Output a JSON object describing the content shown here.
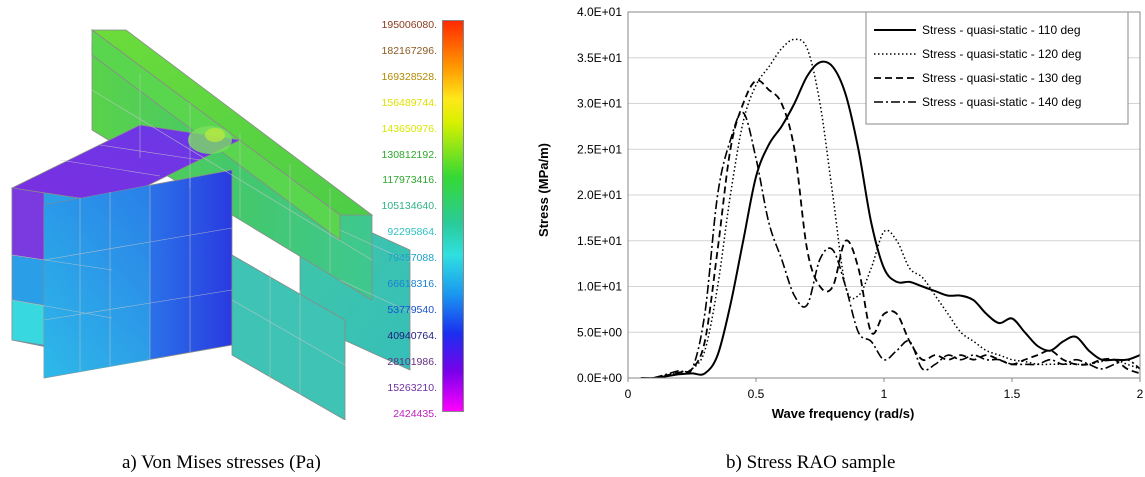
{
  "captions": {
    "a": "a) Von Mises stresses (Pa)",
    "b": "b) Stress RAO sample"
  },
  "colorbar": {
    "labels": [
      "195006080.",
      "182167296.",
      "169328528.",
      "156489744.",
      "143650976.",
      "130812192.",
      "117973416.",
      "105134640.",
      "92295864.",
      "79457088.",
      "66618316.",
      "53779540.",
      "40940764.",
      "28101986.",
      "15263210.",
      "2424435."
    ],
    "label_colors": [
      "#8a3a20",
      "#8a5a20",
      "#b08a00",
      "#e0e000",
      "#d8e800",
      "#2ca82c",
      "#2ca82c",
      "#33b088",
      "#30c0c0",
      "#1aa0c8",
      "#1a80d0",
      "#1a50d0",
      "#202080",
      "#603080",
      "#7030a0",
      "#c020c0"
    ]
  },
  "chart_data": {
    "type": "line",
    "xlabel": "Wave frequency (rad/s)",
    "ylabel": "Stress (MPa/m)",
    "xlim": [
      0,
      2
    ],
    "ylim": [
      0,
      40
    ],
    "x_ticks": [
      0,
      0.5,
      1,
      1.5,
      2
    ],
    "x_tick_labels": [
      "0",
      "0.5",
      "1",
      "1.5",
      "2"
    ],
    "y_ticks": [
      0,
      5,
      10,
      15,
      20,
      25,
      30,
      35,
      40
    ],
    "y_tick_labels": [
      "0.0E+00",
      "5.0E+00",
      "1.0E+01",
      "1.5E+01",
      "2.0E+01",
      "2.5E+01",
      "3.0E+01",
      "3.5E+01",
      "4.0E+01"
    ],
    "grid": "horizontal",
    "legend_position": "top-right",
    "series": [
      {
        "name": "Stress - quasi-static - 110 deg",
        "dash": "solid",
        "x": [
          0.05,
          0.1,
          0.15,
          0.2,
          0.25,
          0.3,
          0.35,
          0.4,
          0.45,
          0.5,
          0.55,
          0.6,
          0.65,
          0.7,
          0.75,
          0.8,
          0.85,
          0.9,
          0.95,
          1.0,
          1.05,
          1.1,
          1.15,
          1.2,
          1.25,
          1.3,
          1.35,
          1.4,
          1.45,
          1.5,
          1.55,
          1.6,
          1.65,
          1.7,
          1.75,
          1.8,
          1.85,
          1.9,
          1.95,
          2.0
        ],
        "y": [
          0,
          0,
          0.2,
          0.4,
          0.5,
          0.5,
          2.5,
          8,
          15,
          22,
          25.5,
          27.5,
          30,
          33,
          34.5,
          34,
          31,
          25,
          17,
          12,
          10.5,
          10.5,
          10,
          9.5,
          9,
          9,
          8.5,
          7,
          6,
          6.5,
          5,
          3.5,
          3,
          4,
          4.5,
          3,
          2,
          2,
          2,
          2.5
        ]
      },
      {
        "name": "Stress - quasi-static - 120 deg",
        "dash": "dotted",
        "x": [
          0.1,
          0.15,
          0.2,
          0.25,
          0.3,
          0.35,
          0.4,
          0.45,
          0.5,
          0.55,
          0.6,
          0.65,
          0.7,
          0.75,
          0.8,
          0.85,
          0.9,
          0.95,
          1.0,
          1.05,
          1.1,
          1.15,
          1.2,
          1.25,
          1.3,
          1.35,
          1.4,
          1.45,
          1.5,
          1.55,
          1.6,
          1.65,
          1.7,
          1.75,
          1.8,
          1.85,
          1.9,
          1.95,
          2.0
        ],
        "y": [
          0,
          0.3,
          0.6,
          1,
          3,
          10,
          20,
          28,
          32,
          34,
          36,
          37,
          36,
          30,
          20,
          10,
          9,
          12,
          16,
          15,
          12,
          11,
          9,
          7,
          5,
          4,
          3,
          2.5,
          2,
          1.8,
          1.5,
          1.5,
          1.5,
          1.5,
          1.5,
          1.8,
          2,
          1.5,
          1
        ]
      },
      {
        "name": "Stress - quasi-static - 130 deg",
        "dash": "dashed",
        "x": [
          0.1,
          0.15,
          0.2,
          0.25,
          0.3,
          0.35,
          0.4,
          0.45,
          0.5,
          0.55,
          0.6,
          0.65,
          0.7,
          0.75,
          0.8,
          0.85,
          0.9,
          0.95,
          1.0,
          1.05,
          1.1,
          1.15,
          1.2,
          1.25,
          1.3,
          1.35,
          1.4,
          1.45,
          1.5,
          1.55,
          1.6,
          1.65,
          1.7,
          1.75,
          1.8,
          1.85,
          1.9,
          1.95,
          2.0
        ],
        "y": [
          0,
          0.3,
          0.6,
          1,
          4,
          14,
          25,
          30,
          32.5,
          31.5,
          30,
          25,
          14,
          10,
          10,
          15,
          12,
          5,
          7,
          7,
          4,
          2,
          2.5,
          2,
          2.5,
          2,
          2.5,
          2,
          1.5,
          2,
          2.5,
          3,
          2,
          1.5,
          1.5,
          2,
          2,
          1,
          0.5
        ]
      },
      {
        "name": "Stress - quasi-static - 140 deg",
        "dash": "dashdot",
        "x": [
          0.1,
          0.15,
          0.2,
          0.25,
          0.3,
          0.35,
          0.4,
          0.45,
          0.5,
          0.55,
          0.6,
          0.65,
          0.7,
          0.75,
          0.8,
          0.85,
          0.9,
          0.95,
          1.0,
          1.05,
          1.1,
          1.15,
          1.2,
          1.25,
          1.3,
          1.35,
          1.4,
          1.45,
          1.5,
          1.55,
          1.6,
          1.65,
          1.7,
          1.75,
          1.8,
          1.85,
          1.9,
          1.95,
          2.0
        ],
        "y": [
          0,
          0.4,
          0.8,
          1,
          7,
          20,
          26,
          29,
          24,
          17,
          13,
          9,
          8,
          13,
          14,
          10,
          5,
          4,
          2,
          3,
          4,
          1,
          1.5,
          2.5,
          2,
          2.5,
          2,
          2,
          1.5,
          1.5,
          1.5,
          2,
          1.5,
          2,
          1.5,
          1,
          1.5,
          2,
          1
        ]
      }
    ]
  }
}
